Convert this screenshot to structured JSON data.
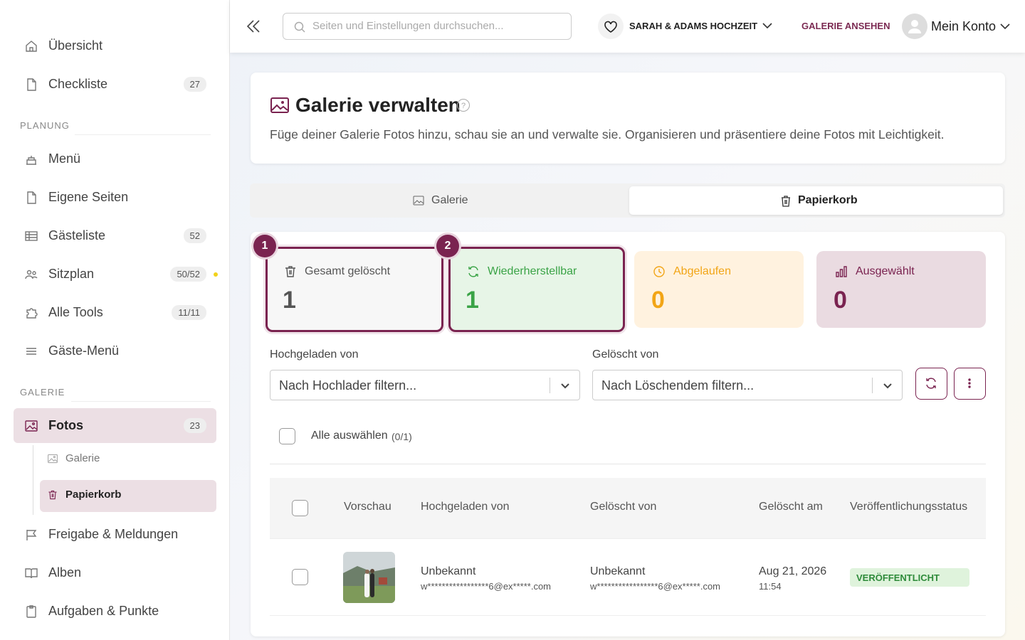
{
  "sidebar": {
    "top": [
      {
        "label": "Übersicht"
      },
      {
        "label": "Checkliste",
        "badge": 27
      }
    ],
    "planning_heading": "PLANUNG",
    "planning": [
      {
        "label": "Menü"
      },
      {
        "label": "Eigene Seiten"
      },
      {
        "label": "Gästeliste",
        "badge": 52
      },
      {
        "label": "Sitzplan",
        "badge": "50/52"
      },
      {
        "label": "Alle Tools",
        "badge": "11/11"
      },
      {
        "label": "Gäste-Menü"
      }
    ],
    "gallery_heading": "GALERIE",
    "gallery": [
      {
        "label": "Fotos",
        "badge": 23
      }
    ],
    "gallery_sub": [
      {
        "label": "Galerie"
      },
      {
        "label": "Papierkorb"
      }
    ],
    "more": [
      {
        "label": "Freigabe & Meldungen"
      },
      {
        "label": "Alben"
      },
      {
        "label": "Aufgaben & Punkte"
      }
    ]
  },
  "header": {
    "search_placeholder": "Seiten und Einstellungen durchsuchen...",
    "event": "SARAH & ADAMS HOCHZEIT",
    "view_gallery": "GALERIE ANSEHEN",
    "account": "Mein Konto"
  },
  "page": {
    "title": "Galerie verwalten",
    "description": "Füge deiner Galerie Fotos hinzu, schau sie an und verwalte sie. Organisieren und präsentiere deine Fotos mit Leichtigkeit."
  },
  "tabs": [
    "Galerie",
    "Papierkorb"
  ],
  "stats": [
    {
      "step": 1,
      "label": "Gesamt gelöscht",
      "value": 1
    },
    {
      "step": 2,
      "label": "Wiederherstellbar",
      "value": 1
    },
    {
      "label": "Abgelaufen",
      "value": 0
    },
    {
      "label": "Ausgewählt",
      "value": 0
    }
  ],
  "filters": [
    {
      "label": "Hochgeladen von",
      "placeholder": "Nach Hochlader filtern..."
    },
    {
      "label": "Gelöscht von",
      "placeholder": "Nach Löschendem filtern..."
    }
  ],
  "select_all": {
    "label": "Alle auswählen",
    "count": "(0/1)"
  },
  "table": {
    "columns": [
      "Vorschau",
      "Hochgeladen von",
      "Gelöscht von",
      "Gelöscht am",
      "Veröffentlichungsstatus"
    ],
    "rows": [
      {
        "uploaded_by": "Unbekannt",
        "uploader_email": "w*****************6@ex*****.com",
        "deleted_by": "Unbekannt",
        "deleter_email": "w*****************6@ex*****.com",
        "date": "Aug 21, 2026",
        "time": "11:54",
        "status": "VERÖFFENTLICHT"
      }
    ]
  }
}
